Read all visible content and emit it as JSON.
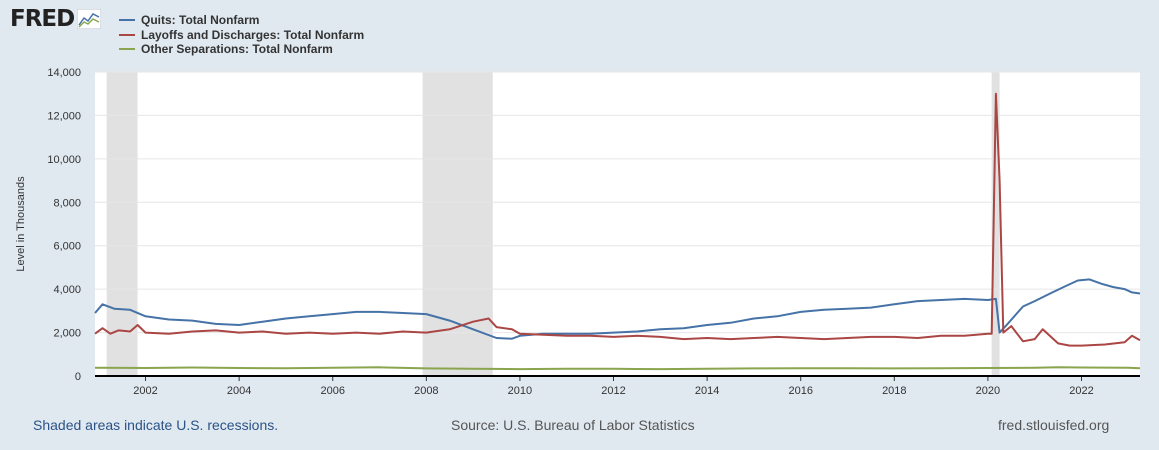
{
  "logo": {
    "text": "FRED",
    "icon": "line-graph-icon"
  },
  "legend": [
    {
      "label": "Quits: Total Nonfarm",
      "color": "#4572a7"
    },
    {
      "label": "Layoffs and Discharges: Total Nonfarm",
      "color": "#aa4643"
    },
    {
      "label": "Other Separations: Total Nonfarm",
      "color": "#89a54e"
    }
  ],
  "footer": {
    "left": "Shaded areas indicate U.S. recessions.",
    "source": "Source: U.S. Bureau of Labor Statistics",
    "url": "fred.stlouisfed.org"
  },
  "chart_data": {
    "type": "line",
    "title": "",
    "xlabel": "",
    "ylabel": "Level in Thousands",
    "xlim": [
      2000.92,
      2023.25
    ],
    "ylim": [
      0,
      14000
    ],
    "y_ticks": [
      0,
      2000,
      4000,
      6000,
      8000,
      10000,
      12000,
      14000
    ],
    "y_tick_labels": [
      "0",
      "2,000",
      "4,000",
      "6,000",
      "8,000",
      "10,000",
      "12,000",
      "14,000"
    ],
    "x_ticks": [
      2002,
      2004,
      2006,
      2008,
      2010,
      2012,
      2014,
      2016,
      2018,
      2020,
      2022
    ],
    "x_tick_labels": [
      "2002",
      "2004",
      "2006",
      "2008",
      "2010",
      "2012",
      "2014",
      "2016",
      "2018",
      "2020",
      "2022"
    ],
    "grid": "horizontal",
    "recessions": [
      [
        2001.17,
        2001.83
      ],
      [
        2007.92,
        2009.42
      ],
      [
        2020.08,
        2020.25
      ]
    ],
    "series": [
      {
        "name": "Quits: Total Nonfarm",
        "color": "#4572a7",
        "points": [
          [
            2000.92,
            2900
          ],
          [
            2001.08,
            3300
          ],
          [
            2001.33,
            3100
          ],
          [
            2001.67,
            3050
          ],
          [
            2002.0,
            2750
          ],
          [
            2002.5,
            2600
          ],
          [
            2003.0,
            2550
          ],
          [
            2003.5,
            2400
          ],
          [
            2004.0,
            2350
          ],
          [
            2004.5,
            2500
          ],
          [
            2005.0,
            2650
          ],
          [
            2005.5,
            2750
          ],
          [
            2006.0,
            2850
          ],
          [
            2006.5,
            2950
          ],
          [
            2007.0,
            2950
          ],
          [
            2007.5,
            2900
          ],
          [
            2008.0,
            2850
          ],
          [
            2008.5,
            2550
          ],
          [
            2009.0,
            2150
          ],
          [
            2009.5,
            1750
          ],
          [
            2009.83,
            1720
          ],
          [
            2010.0,
            1850
          ],
          [
            2010.5,
            1950
          ],
          [
            2011.0,
            1950
          ],
          [
            2011.5,
            1950
          ],
          [
            2012.0,
            2000
          ],
          [
            2012.5,
            2050
          ],
          [
            2013.0,
            2150
          ],
          [
            2013.5,
            2200
          ],
          [
            2014.0,
            2350
          ],
          [
            2014.5,
            2450
          ],
          [
            2015.0,
            2650
          ],
          [
            2015.5,
            2750
          ],
          [
            2016.0,
            2950
          ],
          [
            2016.5,
            3050
          ],
          [
            2017.0,
            3100
          ],
          [
            2017.5,
            3150
          ],
          [
            2018.0,
            3300
          ],
          [
            2018.5,
            3450
          ],
          [
            2019.0,
            3500
          ],
          [
            2019.5,
            3550
          ],
          [
            2020.0,
            3500
          ],
          [
            2020.17,
            3550
          ],
          [
            2020.25,
            2000
          ],
          [
            2020.42,
            2400
          ],
          [
            2020.75,
            3200
          ],
          [
            2021.0,
            3450
          ],
          [
            2021.33,
            3800
          ],
          [
            2021.67,
            4150
          ],
          [
            2021.92,
            4400
          ],
          [
            2022.17,
            4450
          ],
          [
            2022.42,
            4250
          ],
          [
            2022.67,
            4100
          ],
          [
            2022.92,
            4000
          ],
          [
            2023.08,
            3850
          ],
          [
            2023.25,
            3800
          ]
        ]
      },
      {
        "name": "Layoffs and Discharges: Total Nonfarm",
        "color": "#aa4643",
        "points": [
          [
            2000.92,
            1950
          ],
          [
            2001.08,
            2200
          ],
          [
            2001.25,
            1950
          ],
          [
            2001.42,
            2100
          ],
          [
            2001.67,
            2050
          ],
          [
            2001.83,
            2350
          ],
          [
            2002.0,
            2000
          ],
          [
            2002.5,
            1950
          ],
          [
            2003.0,
            2050
          ],
          [
            2003.5,
            2100
          ],
          [
            2004.0,
            2000
          ],
          [
            2004.5,
            2050
          ],
          [
            2005.0,
            1950
          ],
          [
            2005.5,
            2000
          ],
          [
            2006.0,
            1950
          ],
          [
            2006.5,
            2000
          ],
          [
            2007.0,
            1950
          ],
          [
            2007.5,
            2050
          ],
          [
            2008.0,
            2000
          ],
          [
            2008.5,
            2150
          ],
          [
            2009.0,
            2500
          ],
          [
            2009.33,
            2650
          ],
          [
            2009.5,
            2250
          ],
          [
            2009.83,
            2150
          ],
          [
            2010.0,
            1950
          ],
          [
            2010.5,
            1900
          ],
          [
            2011.0,
            1850
          ],
          [
            2011.5,
            1850
          ],
          [
            2012.0,
            1800
          ],
          [
            2012.5,
            1850
          ],
          [
            2013.0,
            1800
          ],
          [
            2013.5,
            1700
          ],
          [
            2014.0,
            1750
          ],
          [
            2014.5,
            1700
          ],
          [
            2015.0,
            1750
          ],
          [
            2015.5,
            1800
          ],
          [
            2016.0,
            1750
          ],
          [
            2016.5,
            1700
          ],
          [
            2017.0,
            1750
          ],
          [
            2017.5,
            1800
          ],
          [
            2018.0,
            1800
          ],
          [
            2018.5,
            1750
          ],
          [
            2019.0,
            1850
          ],
          [
            2019.5,
            1850
          ],
          [
            2020.0,
            1950
          ],
          [
            2020.08,
            1950
          ],
          [
            2020.17,
            13000
          ],
          [
            2020.25,
            9000
          ],
          [
            2020.33,
            2000
          ],
          [
            2020.5,
            2300
          ],
          [
            2020.75,
            1600
          ],
          [
            2021.0,
            1700
          ],
          [
            2021.17,
            2150
          ],
          [
            2021.5,
            1500
          ],
          [
            2021.75,
            1400
          ],
          [
            2022.0,
            1400
          ],
          [
            2022.5,
            1450
          ],
          [
            2022.92,
            1550
          ],
          [
            2023.08,
            1850
          ],
          [
            2023.25,
            1650
          ]
        ]
      },
      {
        "name": "Other Separations: Total Nonfarm",
        "color": "#89a54e",
        "points": [
          [
            2000.92,
            380
          ],
          [
            2002.0,
            370
          ],
          [
            2003.0,
            390
          ],
          [
            2004.0,
            370
          ],
          [
            2005.0,
            360
          ],
          [
            2006.0,
            380
          ],
          [
            2007.0,
            400
          ],
          [
            2008.0,
            350
          ],
          [
            2009.0,
            330
          ],
          [
            2010.0,
            320
          ],
          [
            2011.0,
            330
          ],
          [
            2012.0,
            330
          ],
          [
            2013.0,
            320
          ],
          [
            2014.0,
            330
          ],
          [
            2015.0,
            350
          ],
          [
            2016.0,
            360
          ],
          [
            2017.0,
            360
          ],
          [
            2018.0,
            350
          ],
          [
            2019.0,
            360
          ],
          [
            2020.0,
            370
          ],
          [
            2021.0,
            380
          ],
          [
            2021.5,
            400
          ],
          [
            2022.0,
            390
          ],
          [
            2023.0,
            380
          ],
          [
            2023.25,
            360
          ]
        ]
      }
    ]
  }
}
